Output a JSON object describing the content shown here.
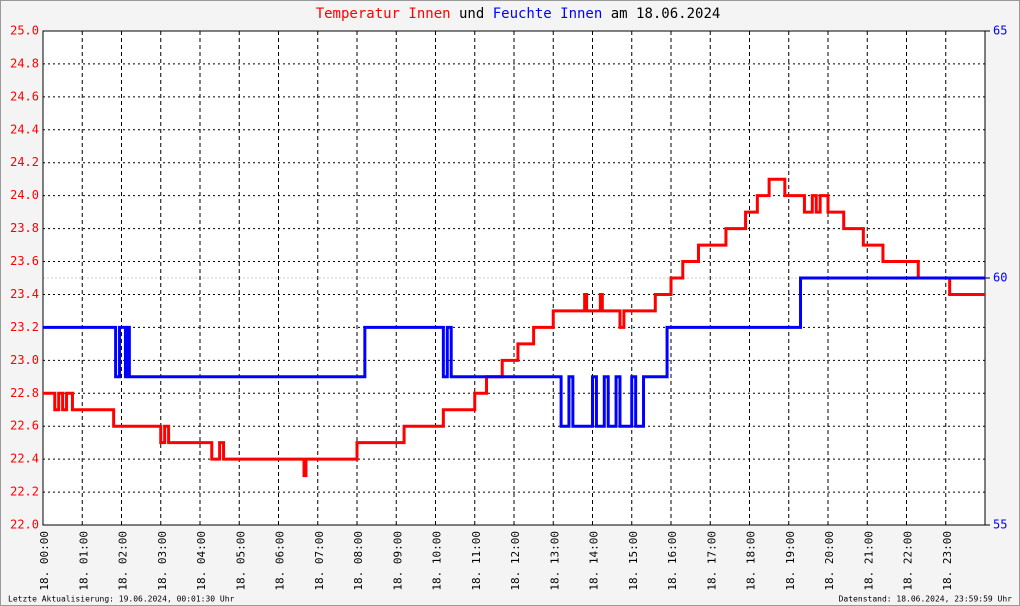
{
  "chart_data": {
    "type": "line",
    "title_connector": "und",
    "title_date": "am 18.06.2024",
    "footer_left": "Letzte Aktualisierung: 19.06.2024, 00:01:30 Uhr",
    "footer_right": "Datenstand: 18.06.2024, 23:59:59 Uhr",
    "grid": true,
    "xlim": [
      0,
      24
    ],
    "xticks": [
      {
        "value": 0,
        "label": "18. 00:00"
      },
      {
        "value": 1,
        "label": "18. 01:00"
      },
      {
        "value": 2,
        "label": "18. 02:00"
      },
      {
        "value": 3,
        "label": "18. 03:00"
      },
      {
        "value": 4,
        "label": "18. 04:00"
      },
      {
        "value": 5,
        "label": "18. 05:00"
      },
      {
        "value": 6,
        "label": "18. 06:00"
      },
      {
        "value": 7,
        "label": "18. 07:00"
      },
      {
        "value": 8,
        "label": "18. 08:00"
      },
      {
        "value": 9,
        "label": "18. 09:00"
      },
      {
        "value": 10,
        "label": "18. 10:00"
      },
      {
        "value": 11,
        "label": "18. 11:00"
      },
      {
        "value": 12,
        "label": "18. 12:00"
      },
      {
        "value": 13,
        "label": "18. 13:00"
      },
      {
        "value": 14,
        "label": "18. 14:00"
      },
      {
        "value": 15,
        "label": "18. 15:00"
      },
      {
        "value": 16,
        "label": "18. 16:00"
      },
      {
        "value": 17,
        "label": "18. 17:00"
      },
      {
        "value": 18,
        "label": "18. 18:00"
      },
      {
        "value": 19,
        "label": "18. 19:00"
      },
      {
        "value": 20,
        "label": "18. 20:00"
      },
      {
        "value": 21,
        "label": "18. 21:00"
      },
      {
        "value": 22,
        "label": "18. 22:00"
      },
      {
        "value": 23,
        "label": "18. 23:00"
      }
    ],
    "ylim": [
      22.0,
      25.0
    ],
    "yticks": [
      {
        "value": 22.0,
        "label": "22.0"
      },
      22.2,
      22.4,
      22.6,
      22.8,
      {
        "value": 23.0,
        "label": "23.0"
      },
      23.2,
      23.4,
      23.6,
      23.8,
      {
        "value": 24.0,
        "label": "24.0"
      },
      24.2,
      24.4,
      24.6,
      24.8,
      {
        "value": 25.0,
        "label": "25.0"
      }
    ],
    "y2lim": [
      55,
      65
    ],
    "y2ticks": [
      55,
      60,
      65
    ],
    "series": [
      {
        "name": "Temperatur Innen",
        "color": "#ff0000",
        "axis": "y",
        "x": [
          0,
          0.3,
          0.3,
          0.4,
          0.4,
          0.5,
          0.5,
          0.6,
          0.6,
          0.75,
          0.75,
          1.8,
          1.8,
          3.0,
          3.0,
          3.1,
          3.1,
          3.2,
          3.2,
          4.3,
          4.3,
          4.5,
          4.5,
          4.6,
          4.6,
          6.65,
          6.65,
          6.7,
          6.7,
          8.0,
          8.0,
          9.2,
          9.2,
          10.2,
          10.2,
          11.0,
          11.0,
          11.3,
          11.3,
          11.7,
          11.7,
          12.1,
          12.1,
          12.5,
          12.5,
          13.0,
          13.0,
          13.8,
          13.8,
          13.85,
          13.85,
          14.2,
          14.2,
          14.25,
          14.25,
          14.7,
          14.7,
          14.8,
          14.8,
          15.6,
          15.6,
          16.0,
          16.0,
          16.3,
          16.3,
          16.7,
          16.7,
          17.4,
          17.4,
          17.9,
          17.9,
          18.2,
          18.2,
          18.5,
          18.5,
          18.9,
          18.9,
          19.4,
          19.4,
          19.6,
          19.6,
          19.7,
          19.7,
          19.8,
          19.8,
          20.0,
          20.0,
          20.4,
          20.4,
          20.9,
          20.9,
          21.4,
          21.4,
          22.3,
          22.3,
          23.1,
          23.1,
          24
        ],
        "values": [
          22.8,
          22.8,
          22.7,
          22.7,
          22.8,
          22.8,
          22.7,
          22.7,
          22.8,
          22.8,
          22.7,
          22.7,
          22.6,
          22.6,
          22.5,
          22.5,
          22.6,
          22.6,
          22.5,
          22.5,
          22.4,
          22.4,
          22.5,
          22.5,
          22.4,
          22.4,
          22.3,
          22.3,
          22.4,
          22.4,
          22.5,
          22.5,
          22.6,
          22.6,
          22.7,
          22.7,
          22.8,
          22.8,
          22.9,
          22.9,
          23.0,
          23.0,
          23.1,
          23.1,
          23.2,
          23.2,
          23.3,
          23.3,
          23.4,
          23.4,
          23.3,
          23.3,
          23.4,
          23.4,
          23.3,
          23.3,
          23.2,
          23.2,
          23.3,
          23.3,
          23.4,
          23.4,
          23.5,
          23.5,
          23.6,
          23.6,
          23.7,
          23.7,
          23.8,
          23.8,
          23.9,
          23.9,
          24.0,
          24.0,
          24.1,
          24.1,
          24.0,
          24.0,
          23.9,
          23.9,
          24.0,
          24.0,
          23.9,
          23.9,
          24.0,
          24.0,
          23.9,
          23.9,
          23.8,
          23.8,
          23.7,
          23.7,
          23.6,
          23.6,
          23.5,
          23.5,
          23.4,
          23.4
        ]
      },
      {
        "name": "Feuchte Innen",
        "color": "#0000ff",
        "axis": "y2",
        "x": [
          0,
          1.85,
          1.85,
          1.95,
          1.95,
          2.1,
          2.1,
          2.15,
          2.15,
          2.2,
          2.2,
          8.2,
          8.2,
          10.2,
          10.2,
          10.3,
          10.3,
          10.4,
          10.4,
          13.2,
          13.2,
          13.4,
          13.4,
          13.5,
          13.5,
          14.0,
          14.0,
          14.1,
          14.1,
          14.3,
          14.3,
          14.4,
          14.4,
          14.6,
          14.6,
          14.7,
          14.7,
          15.0,
          15.0,
          15.1,
          15.1,
          15.3,
          15.3,
          15.9,
          15.9,
          19.3,
          19.3,
          24
        ],
        "values": [
          59,
          59,
          58,
          58,
          59,
          59,
          58,
          58,
          59,
          59,
          58,
          58,
          59,
          59,
          58,
          58,
          59,
          59,
          58,
          58,
          57,
          57,
          58,
          58,
          57,
          57,
          58,
          58,
          57,
          57,
          58,
          58,
          57,
          57,
          58,
          58,
          57,
          57,
          58,
          58,
          57,
          57,
          58,
          58,
          59,
          59,
          60,
          60
        ]
      }
    ]
  }
}
